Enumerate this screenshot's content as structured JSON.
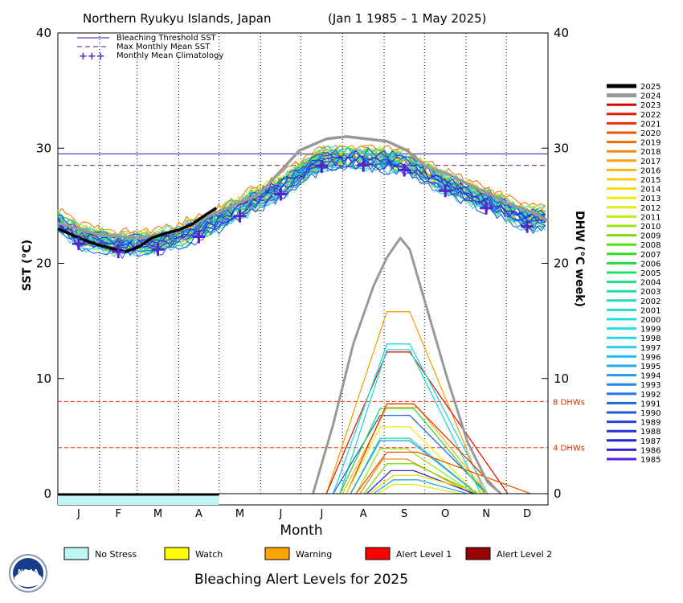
{
  "chart_data": {
    "type": "line",
    "title": "Northern Ryukyu Islands, Japan",
    "date_range": "(Jan 1 1985 – 1 May 2025)",
    "xlabel": "Month",
    "ylabel_left": "SST (°C)",
    "ylabel_right": "DHW (°C week)",
    "ylim": [
      0,
      40
    ],
    "y_ticks": [
      "0",
      "10",
      "20",
      "30",
      "40"
    ],
    "months": [
      "J",
      "F",
      "M",
      "A",
      "M",
      "J",
      "J",
      "A",
      "S",
      "O",
      "N",
      "D"
    ],
    "thresholds": {
      "bleaching_threshold_sst": 29.5,
      "max_monthly_mean_sst": 28.5,
      "dhw_levels": [
        {
          "value": 8,
          "label": "8 DHWs"
        },
        {
          "value": 4,
          "label": "4 DHWs"
        }
      ]
    },
    "legend_top": {
      "bleaching": "Bleaching Threshold SST",
      "mmm": "Max Monthly Mean SST",
      "clim": "Monthly Mean Climatology",
      "clim_symbol": "+++"
    },
    "climatology": [
      {
        "month": "Jan",
        "value": 21.7
      },
      {
        "month": "Feb",
        "value": 21.0
      },
      {
        "month": "Mar",
        "value": 21.2
      },
      {
        "month": "Apr",
        "value": 22.3
      },
      {
        "month": "May",
        "value": 24.1
      },
      {
        "month": "Jun",
        "value": 26.0
      },
      {
        "month": "Jul",
        "value": 28.4
      },
      {
        "month": "Aug",
        "value": 28.5
      },
      {
        "month": "Sep",
        "value": 28.1
      },
      {
        "month": "Oct",
        "value": 26.3
      },
      {
        "month": "Nov",
        "value": 24.8
      },
      {
        "month": "Dec",
        "value": 23.2
      }
    ],
    "sst_2025": {
      "name": "2025",
      "points": [
        [
          0,
          23.0
        ],
        [
          10,
          22.5
        ],
        [
          20,
          22.0
        ],
        [
          30,
          21.6
        ],
        [
          40,
          21.3
        ],
        [
          50,
          21.0
        ],
        [
          60,
          21.4
        ],
        [
          70,
          22.2
        ],
        [
          80,
          22.6
        ],
        [
          90,
          22.9
        ],
        [
          100,
          23.4
        ],
        [
          110,
          24.2
        ],
        [
          118,
          24.8
        ]
      ]
    },
    "sst_2024": {
      "name": "2024",
      "points": [
        [
          0,
          23.5
        ],
        [
          30,
          22.5
        ],
        [
          60,
          22.2
        ],
        [
          90,
          22.8
        ],
        [
          120,
          24.5
        ],
        [
          150,
          26.0
        ],
        [
          180,
          29.8
        ],
        [
          200,
          30.8
        ],
        [
          215,
          31.0
        ],
        [
          230,
          30.8
        ],
        [
          245,
          30.6
        ],
        [
          260,
          29.8
        ],
        [
          275,
          28.3
        ],
        [
          290,
          27.8
        ],
        [
          305,
          26.9
        ],
        [
          320,
          26.1
        ],
        [
          335,
          25.2
        ],
        [
          350,
          24.6
        ],
        [
          365,
          23.7
        ]
      ]
    },
    "dhw_2024": {
      "name": "2024",
      "points": [
        [
          190,
          0
        ],
        [
          205,
          6
        ],
        [
          220,
          13
        ],
        [
          235,
          18
        ],
        [
          245,
          20.5
        ],
        [
          255,
          22.2
        ],
        [
          262,
          21.2
        ],
        [
          275,
          16
        ],
        [
          290,
          10.0
        ],
        [
          305,
          4.5
        ],
        [
          320,
          1.0
        ],
        [
          330,
          0
        ]
      ]
    },
    "dhw_others": [
      {
        "year": "2017",
        "peak": 15.8,
        "start": 200,
        "peak_start": 245,
        "peak_end": 262,
        "end": 318
      },
      {
        "year": "2022",
        "peak": 12.3,
        "start": 200,
        "peak_start": 245,
        "peak_end": 262,
        "end": 335
      },
      {
        "year": "1998",
        "peak": 13.0,
        "start": 205,
        "peak_start": 245,
        "peak_end": 262,
        "end": 320
      },
      {
        "year": "2001",
        "peak": 12.5,
        "start": 210,
        "peak_start": 245,
        "peak_end": 262,
        "end": 315
      },
      {
        "year": "1991",
        "peak": 6.8,
        "start": 205,
        "peak_start": 240,
        "peak_end": 262,
        "end": 320
      },
      {
        "year": "2006",
        "peak": 7.4,
        "start": 210,
        "peak_start": 240,
        "peak_end": 265,
        "end": 318
      },
      {
        "year": "2016",
        "peak": 7.5,
        "start": 212,
        "peak_start": 245,
        "peak_end": 268,
        "end": 320
      },
      {
        "year": "2021",
        "peak": 7.8,
        "start": 215,
        "peak_start": 245,
        "peak_end": 265,
        "end": 330
      },
      {
        "year": "2013",
        "peak": 5.8,
        "start": 215,
        "peak_start": 240,
        "peak_end": 262,
        "end": 312
      },
      {
        "year": "2003",
        "peak": 4.8,
        "start": 218,
        "peak_start": 240,
        "peak_end": 262,
        "end": 312
      },
      {
        "year": "1994",
        "peak": 4.6,
        "start": 218,
        "peak_start": 240,
        "peak_end": 262,
        "end": 312
      },
      {
        "year": "2010",
        "peak": 3.9,
        "start": 222,
        "peak_start": 240,
        "peak_end": 260,
        "end": 310
      },
      {
        "year": "2018",
        "peak": 3.0,
        "start": 225,
        "peak_start": 242,
        "peak_end": 260,
        "end": 308
      },
      {
        "year": "2020",
        "peak": 3.6,
        "start": 222,
        "peak_start": 245,
        "peak_end": 268,
        "end": 352
      },
      {
        "year": "2009",
        "peak": 2.6,
        "start": 228,
        "peak_start": 245,
        "peak_end": 265,
        "end": 312
      },
      {
        "year": "1988",
        "peak": 2.0,
        "start": 230,
        "peak_start": 248,
        "peak_end": 265,
        "end": 310
      },
      {
        "year": "2015",
        "peak": 1.6,
        "start": 232,
        "peak_start": 250,
        "peak_end": 268,
        "end": 318
      },
      {
        "year": "1995",
        "peak": 1.2,
        "start": 235,
        "peak_start": 250,
        "peak_end": 268,
        "end": 305
      },
      {
        "year": "2012",
        "peak": 0.8,
        "start": 238,
        "peak_start": 250,
        "peak_end": 265,
        "end": 300
      }
    ],
    "year_legend": [
      {
        "year": "2025",
        "color": "#000000",
        "thick": true
      },
      {
        "year": "2024",
        "color": "#999999",
        "thick": true
      },
      {
        "year": "2023",
        "color": "#dd0000"
      },
      {
        "year": "2022",
        "color": "#e21a00"
      },
      {
        "year": "2021",
        "color": "#e83300"
      },
      {
        "year": "2020",
        "color": "#ee5500"
      },
      {
        "year": "2019",
        "color": "#f26a00"
      },
      {
        "year": "2018",
        "color": "#f78a11"
      },
      {
        "year": "2017",
        "color": "#f9a011"
      },
      {
        "year": "2016",
        "color": "#f9b811"
      },
      {
        "year": "2015",
        "color": "#f9cc11"
      },
      {
        "year": "2014",
        "color": "#f5df11"
      },
      {
        "year": "2013",
        "color": "#eeee11"
      },
      {
        "year": "2012",
        "color": "#ddee11"
      },
      {
        "year": "2011",
        "color": "#bbee11"
      },
      {
        "year": "2010",
        "color": "#99e611"
      },
      {
        "year": "2009",
        "color": "#77dd11"
      },
      {
        "year": "2008",
        "color": "#55dd11"
      },
      {
        "year": "2007",
        "color": "#33dd22"
      },
      {
        "year": "2006",
        "color": "#22dd44"
      },
      {
        "year": "2005",
        "color": "#22dd66"
      },
      {
        "year": "2004",
        "color": "#22dd88"
      },
      {
        "year": "2003",
        "color": "#22ddaa"
      },
      {
        "year": "2002",
        "color": "#22ddbb"
      },
      {
        "year": "2001",
        "color": "#22ddcc"
      },
      {
        "year": "2000",
        "color": "#22dddd"
      },
      {
        "year": "1999",
        "color": "#22dde6"
      },
      {
        "year": "1998",
        "color": "#22d8ee"
      },
      {
        "year": "1997",
        "color": "#22ccee"
      },
      {
        "year": "1996",
        "color": "#22bbee"
      },
      {
        "year": "1995",
        "color": "#22aaee"
      },
      {
        "year": "1994",
        "color": "#2299ee"
      },
      {
        "year": "1993",
        "color": "#2288ee"
      },
      {
        "year": "1992",
        "color": "#2277ee"
      },
      {
        "year": "1991",
        "color": "#2266dd"
      },
      {
        "year": "1990",
        "color": "#2255dd"
      },
      {
        "year": "1989",
        "color": "#2244dd"
      },
      {
        "year": "1988",
        "color": "#2233dd"
      },
      {
        "year": "1987",
        "color": "#2222dd"
      },
      {
        "year": "1986",
        "color": "#3322dd"
      },
      {
        "year": "1985",
        "color": "#5522dd"
      }
    ],
    "alert_levels": [
      {
        "label": "No Stress",
        "color": "#bff5f5"
      },
      {
        "label": "Watch",
        "color": "#ffff00"
      },
      {
        "label": "Warning",
        "color": "#ffa500"
      },
      {
        "label": "Alert Level 1",
        "color": "#ff0000"
      },
      {
        "label": "Alert Level 2",
        "color": "#990000"
      }
    ],
    "alert_bar_2025": {
      "status": "No Stress",
      "start_day": 0,
      "end_day": 120
    },
    "footer_title": "Bleaching Alert Levels for 2025",
    "logo_text": "NOAA"
  }
}
